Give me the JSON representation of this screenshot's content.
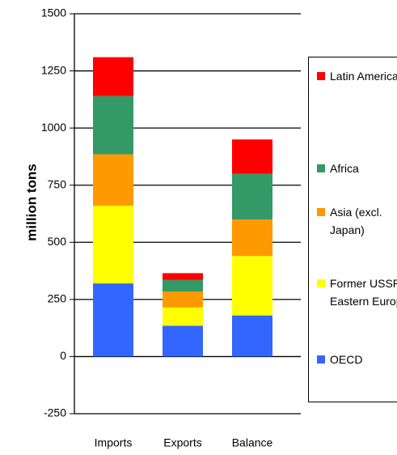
{
  "chart_data": {
    "type": "stacked_bar",
    "y_label": "million tons",
    "categories": [
      "Imports",
      "Exports",
      "Balance"
    ],
    "series": [
      {
        "name": "OECD",
        "color": "#3366ff",
        "values": [
          320,
          135,
          180
        ]
      },
      {
        "name": "Former USSR / Eastern Europe",
        "color": "#ffff00",
        "values": [
          340,
          80,
          260
        ]
      },
      {
        "name": "Asia (excl. Japan)",
        "color": "#ff9900",
        "values": [
          225,
          70,
          160
        ]
      },
      {
        "name": "Africa",
        "color": "#339966",
        "values": [
          255,
          50,
          200
        ]
      },
      {
        "name": "Latin America",
        "color": "#ff0000",
        "values": [
          170,
          30,
          150
        ]
      }
    ],
    "ylim": [
      -250,
      1500
    ],
    "yticks": [
      -250,
      0,
      250,
      500,
      750,
      1000,
      1250,
      1500
    ],
    "grid": true
  }
}
